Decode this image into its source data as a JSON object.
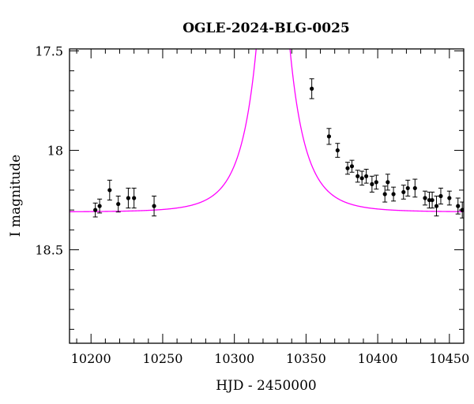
{
  "chart_data": {
    "type": "scatter",
    "title": "OGLE-2024-BLG-0025",
    "xlabel": "HJD - 2450000",
    "ylabel": "I magnitude",
    "xlim": [
      10185,
      10460
    ],
    "ylim": [
      18.97,
      17.49
    ],
    "y_inverted": true,
    "grid": false,
    "legend": "none",
    "x_ticks": [
      10200,
      10250,
      10300,
      10350,
      10400,
      10450
    ],
    "x_tick_labels": [
      "10200",
      "10250",
      "10300",
      "10350",
      "10400",
      "10450"
    ],
    "y_ticks": [
      17.5,
      18,
      18.5
    ],
    "y_tick_labels": [
      "17.5",
      "18",
      "18.5"
    ],
    "colors": {
      "model": "#ff00ff",
      "points": "#000000",
      "axes": "#000000"
    },
    "model": {
      "name": "",
      "t0": 10327,
      "tE": 23,
      "u0": 0.05,
      "baseline_mag": 18.31
    },
    "series": [
      {
        "type": "errorbar",
        "points": [
          {
            "x": 10203,
            "y": 18.3,
            "err": 0.035
          },
          {
            "x": 10206,
            "y": 18.28,
            "err": 0.035
          },
          {
            "x": 10213,
            "y": 18.2,
            "err": 0.05
          },
          {
            "x": 10219,
            "y": 18.27,
            "err": 0.04
          },
          {
            "x": 10226,
            "y": 18.24,
            "err": 0.05
          },
          {
            "x": 10230,
            "y": 18.24,
            "err": 0.05
          },
          {
            "x": 10244,
            "y": 18.28,
            "err": 0.05
          },
          {
            "x": 10354,
            "y": 17.69,
            "err": 0.05
          },
          {
            "x": 10366,
            "y": 17.93,
            "err": 0.04
          },
          {
            "x": 10372,
            "y": 18.0,
            "err": 0.035
          },
          {
            "x": 10379,
            "y": 18.09,
            "err": 0.03
          },
          {
            "x": 10382,
            "y": 18.08,
            "err": 0.03
          },
          {
            "x": 10386,
            "y": 18.13,
            "err": 0.03
          },
          {
            "x": 10389,
            "y": 18.14,
            "err": 0.035
          },
          {
            "x": 10392,
            "y": 18.13,
            "err": 0.035
          },
          {
            "x": 10396,
            "y": 18.17,
            "err": 0.04
          },
          {
            "x": 10399,
            "y": 18.16,
            "err": 0.035
          },
          {
            "x": 10405,
            "y": 18.22,
            "err": 0.04
          },
          {
            "x": 10407,
            "y": 18.16,
            "err": 0.04
          },
          {
            "x": 10411,
            "y": 18.22,
            "err": 0.035
          },
          {
            "x": 10418,
            "y": 18.21,
            "err": 0.035
          },
          {
            "x": 10421,
            "y": 18.19,
            "err": 0.04
          },
          {
            "x": 10426,
            "y": 18.19,
            "err": 0.045
          },
          {
            "x": 10433,
            "y": 18.24,
            "err": 0.035
          },
          {
            "x": 10436,
            "y": 18.25,
            "err": 0.04
          },
          {
            "x": 10438,
            "y": 18.25,
            "err": 0.04
          },
          {
            "x": 10441,
            "y": 18.28,
            "err": 0.05
          },
          {
            "x": 10444,
            "y": 18.23,
            "err": 0.04
          },
          {
            "x": 10450,
            "y": 18.24,
            "err": 0.035
          },
          {
            "x": 10456,
            "y": 18.28,
            "err": 0.04
          },
          {
            "x": 10459,
            "y": 18.3,
            "err": 0.04
          }
        ]
      }
    ]
  }
}
